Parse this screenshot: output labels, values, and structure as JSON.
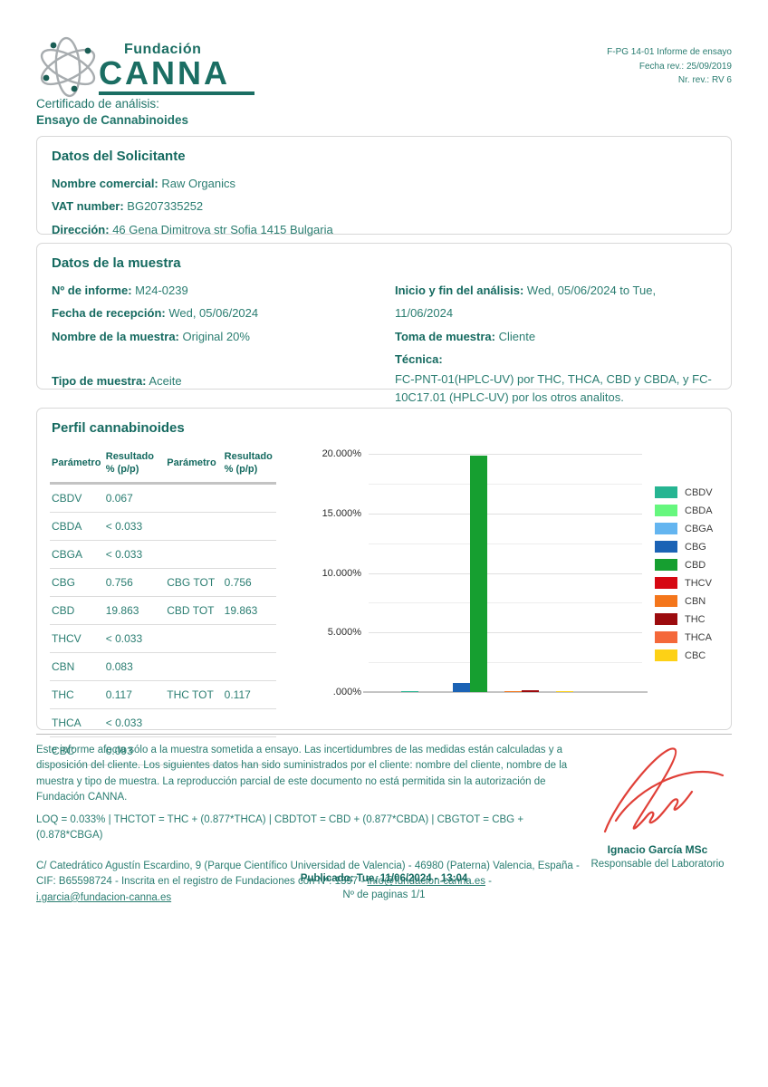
{
  "colors": {
    "accent_teal": "#1b6e63",
    "text_teal": "#2a7d71",
    "label_teal": "#156a60",
    "signature_red": "#e04038"
  },
  "doc_meta": {
    "line1": "F-PG 14-01 Informe de ensayo",
    "line2": "Fecha rev.: 25/09/2019",
    "line3": "Nr. rev.: RV 6"
  },
  "logo": {
    "brand_top": "Fundación",
    "brand_main": "CANNA"
  },
  "cert_title": {
    "line1": "Certificado de análisis:",
    "line2": "Ensayo de Cannabinoides"
  },
  "solicitante": {
    "title": "Datos del Solicitante",
    "fields": [
      {
        "label": "Nombre comercial:",
        "value": "Raw Organics"
      },
      {
        "label": "VAT number:",
        "value": "BG207335252"
      },
      {
        "label": "Dirección:",
        "value": "46 Gena Dimitrova str Sofia 1415 Bulgaria"
      }
    ]
  },
  "muestra": {
    "title": "Datos de la muestra",
    "left_fields": [
      {
        "label": "Nº de informe:",
        "value": "M24-0239"
      },
      {
        "label": "Fecha de recepción:",
        "value": "Wed, 05/06/2024"
      },
      {
        "label": "Nombre de la muestra:",
        "value": "Original 20%"
      }
    ],
    "tipo": {
      "label": "Tipo de muestra:",
      "value": "Aceite"
    },
    "right_fields": [
      {
        "label": "Inicio y fin del análisis:",
        "value": "Wed, 05/06/2024 to Tue, 11/06/2024"
      },
      {
        "label": "Toma de muestra:",
        "value": "Cliente"
      }
    ],
    "tecnica_label": "Técnica:",
    "tecnica_text": "FC-PNT-01(HPLC-UV) por THC, THCA, CBD y CBDA, y FC-10C17.01 (HPLC-UV) por los otros analitos."
  },
  "perfil": {
    "title": "Perfil cannabinoides",
    "table": {
      "headers": [
        "Parámetro",
        "Resultado % (p/p)",
        "Parámetro",
        "Resultado % (p/p)"
      ],
      "rows": [
        [
          "CBDV",
          "0.067",
          "",
          ""
        ],
        [
          "CBDA",
          "< 0.033",
          "",
          ""
        ],
        [
          "CBGA",
          "< 0.033",
          "",
          ""
        ],
        [
          "CBG",
          "0.756",
          "CBG TOT",
          "0.756"
        ],
        [
          "CBD",
          "19.863",
          "CBD TOT",
          "19.863"
        ],
        [
          "THCV",
          "< 0.033",
          "",
          ""
        ],
        [
          "CBN",
          "0.083",
          "",
          ""
        ],
        [
          "THC",
          "0.117",
          "THC TOT",
          "0.117"
        ],
        [
          "THCA",
          "< 0.033",
          "",
          ""
        ],
        [
          "CBC",
          "0.093",
          "",
          ""
        ]
      ]
    }
  },
  "chart_data": {
    "type": "bar",
    "categories": [
      "CBDV",
      "CBDA",
      "CBGA",
      "CBG",
      "CBD",
      "THCV",
      "CBN",
      "THC",
      "THCA",
      "CBC"
    ],
    "values": [
      0.067,
      0,
      0,
      0.756,
      19.863,
      0,
      0.083,
      0.117,
      0,
      0.093
    ],
    "colors": [
      "#26b592",
      "#66f77e",
      "#64b5f0",
      "#1b63b5",
      "#169f30",
      "#d60812",
      "#f4761b",
      "#9c0b0e",
      "#f4683a",
      "#fdd116"
    ],
    "title": "",
    "xlabel": "",
    "ylabel": "",
    "ylim": [
      0,
      20
    ],
    "y_tick_step": 5,
    "gridline_step": 2.5,
    "y_tick_labels": [
      ".000%",
      "5.000%",
      "10.000%",
      "15.000%",
      "20.000%"
    ],
    "grid": true,
    "legend_position": "right"
  },
  "footer": {
    "disclaimer": "Este informe afecta sólo a la muestra sometida a ensayo. Las incertidumbres de las medidas están calculadas y a disposición del cliente. Los siguientes datos han sido suministrados por el cliente: nombre del cliente, nombre de la muestra y tipo de muestra. La reproducción parcial de este documento no está permitida sin la autorización de Fundación CANNA.",
    "loq_line": "LOQ = 0.033% | THCTOT = THC + (0.877*THCA) | CBDTOT = CBD + (0.877*CBDA) | CBGTOT = CBG + (0.878*CBGA)",
    "address_pre": "C/ Catedrático Agustín Escardino, 9 (Parque Científico Universidad de Valencia) - 46980 (Paterna) Valencia, España - CIF: B65598724 - Inscrita en el registro de Fundaciones con Nº: 1397 - ",
    "email1": "info@fundacion-canna.es",
    "separator": " - ",
    "email2": "i.garcia@fundacion-canna.es"
  },
  "signature": {
    "name": "Ignacio García MSc",
    "role": "Responsable del Laboratorio"
  },
  "published": {
    "line1": "Publicado: Tue, 11/06/2024 - 13:04",
    "line2": "Nº de paginas 1/1"
  }
}
